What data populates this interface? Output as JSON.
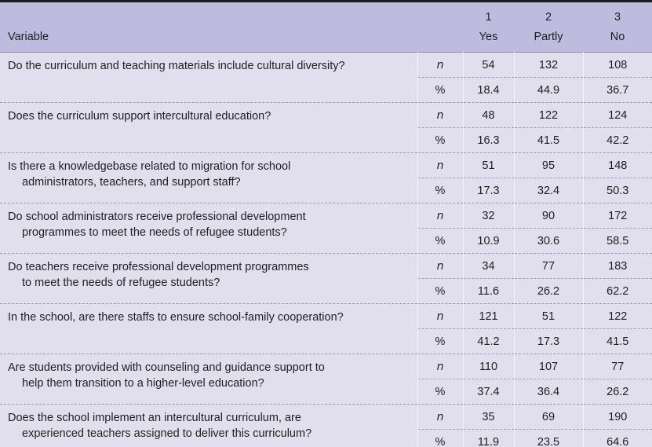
{
  "table": {
    "header": {
      "variable_label": "Variable",
      "columns": [
        {
          "number": "1",
          "label": "Yes"
        },
        {
          "number": "2",
          "label": "Partly"
        },
        {
          "number": "3",
          "label": "No"
        }
      ]
    },
    "row_labels": {
      "n": "n",
      "pct": "%"
    },
    "rows": [
      {
        "question_lines": [
          "Do the curriculum and teaching materials include cultural diversity?"
        ],
        "n": [
          "54",
          "132",
          "108"
        ],
        "pct": [
          "18.4",
          "44.9",
          "36.7"
        ]
      },
      {
        "question_lines": [
          "Does the curriculum support intercultural education?"
        ],
        "n": [
          "48",
          "122",
          "124"
        ],
        "pct": [
          "16.3",
          "41.5",
          "42.2"
        ]
      },
      {
        "question_lines": [
          "Is there a knowledgebase related to migration for school",
          "administrators, teachers, and support staff?"
        ],
        "n": [
          "51",
          "95",
          "148"
        ],
        "pct": [
          "17.3",
          "32.4",
          "50.3"
        ]
      },
      {
        "question_lines": [
          "Do school administrators receive professional development",
          "programmes to meet the needs of refugee students?"
        ],
        "n": [
          "32",
          "90",
          "172"
        ],
        "pct": [
          "10.9",
          "30.6",
          "58.5"
        ]
      },
      {
        "question_lines": [
          "Do teachers receive professional development programmes",
          "to meet the needs of refugee students?"
        ],
        "n": [
          "34",
          "77",
          "183"
        ],
        "pct": [
          "11.6",
          "26.2",
          "62.2"
        ]
      },
      {
        "question_lines": [
          "In the school, are there staffs to ensure school-family cooperation?"
        ],
        "n": [
          "121",
          "51",
          "122"
        ],
        "pct": [
          "41.2",
          "17.3",
          "41.5"
        ]
      },
      {
        "question_lines": [
          "Are students provided with counseling and guidance support to",
          "help them transition to a higher-level education?"
        ],
        "n": [
          "110",
          "107",
          "77"
        ],
        "pct": [
          "37.4",
          "36.4",
          "26.2"
        ]
      },
      {
        "question_lines": [
          "Does the school implement an intercultural curriculum, are",
          "experienced teachers assigned to deliver this curriculum?"
        ],
        "n": [
          "35",
          "69",
          "190"
        ],
        "pct": [
          "11.9",
          "23.5",
          "64.6"
        ]
      }
    ]
  },
  "colors": {
    "header_bg": "#bfbbdf",
    "body_bg": "#e1dfee",
    "outer_border": "#1b1b1b",
    "header_rule": "#8f8da6",
    "dashed_rule": "#a3a1b6",
    "column_rule": "#f3f2f9",
    "text": "#1e1e1e"
  }
}
